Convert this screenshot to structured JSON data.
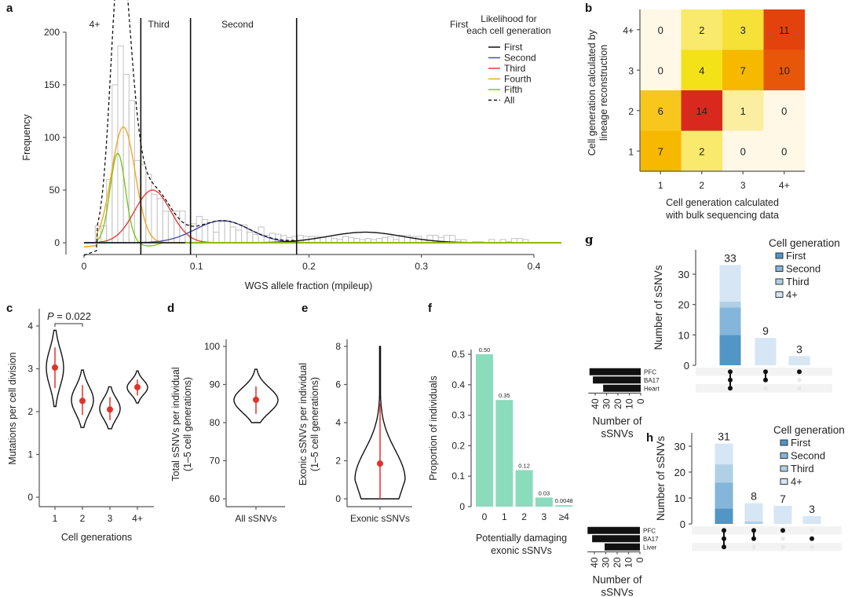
{
  "panel_labels": {
    "a": "a",
    "b": "b",
    "c": "c",
    "d": "d",
    "e": "e",
    "f": "f",
    "g": "g",
    "h": "h"
  },
  "chart_data": [
    {
      "id": "a",
      "type": "line",
      "title": "",
      "xlabel": "WGS allele fraction (mpileup)",
      "ylabel": "Frequency",
      "xlim": [
        0,
        0.42
      ],
      "ylim": [
        0,
        200
      ],
      "xticks": [
        "0",
        "0.1",
        "0.2",
        "0.3",
        "0.4"
      ],
      "xtick_values": [
        0,
        0.1,
        0.2,
        0.3,
        0.4
      ],
      "yticks": [
        "0",
        "50",
        "100",
        "150",
        "200"
      ],
      "ytick_values": [
        0,
        50,
        100,
        150,
        200
      ],
      "histogram": {
        "bin_width": 0.005,
        "bin_start": 0,
        "counts": [
          0,
          0,
          16,
          16,
          60,
          150,
          187,
          160,
          135,
          78,
          74,
          65,
          46,
          42,
          30,
          30,
          30,
          30,
          17,
          18,
          25,
          22,
          19,
          10,
          20,
          20,
          15,
          12,
          17,
          10,
          8,
          15,
          7,
          9,
          8,
          7,
          5,
          6,
          7,
          6,
          6,
          6,
          5,
          6,
          4,
          3,
          6,
          5,
          4,
          3,
          4,
          3,
          4,
          5,
          6,
          3,
          7,
          7,
          6,
          6,
          3,
          7,
          7,
          5,
          7,
          7,
          3,
          3,
          0,
          1,
          1,
          0,
          3,
          0,
          3,
          1,
          4,
          4,
          3,
          0
        ]
      },
      "region_boundaries": [
        0.0505,
        0.0947,
        0.189
      ],
      "region_labels": [
        "4+",
        "Third",
        "Second",
        "First"
      ],
      "legend_title": "Likelihood for each cell generation",
      "legend_position": "top-right",
      "series": [
        {
          "name": "First",
          "color": "#111111",
          "mean": 0.25,
          "sd": 0.033,
          "peak": 10
        },
        {
          "name": "Second",
          "color": "#4a4fb0",
          "mean": 0.123,
          "sd": 0.024,
          "peak": 21
        },
        {
          "name": "Third",
          "color": "#e0413a",
          "mean": 0.061,
          "sd": 0.016,
          "peak": 50
        },
        {
          "name": "Fourth",
          "color": "#f5a623",
          "mean": 0.035,
          "sd": 0.0105,
          "peak": 110
        },
        {
          "name": "Fifth",
          "color": "#7dc421",
          "mean": 0.03,
          "sd": 0.0068,
          "peak": 85
        },
        {
          "name": "All",
          "color": "#111111",
          "dashed": true
        }
      ]
    },
    {
      "id": "b",
      "type": "heatmap",
      "xlabel": "Cell generation calculated with bulk sequencing data",
      "xlabel_lines": [
        "Cell generation calculated",
        "with bulk sequencing data"
      ],
      "ylabel_lines": [
        "Cell generation calculated by",
        "lineage reconstruction"
      ],
      "x_categories": [
        "1",
        "2",
        "3",
        "4+"
      ],
      "y_categories": [
        "1",
        "2",
        "3",
        "4+"
      ],
      "values_by_row_top_to_bottom": [
        {
          "row": "4+",
          "values": [
            0,
            2,
            3,
            11
          ]
        },
        {
          "row": "3",
          "values": [
            0,
            4,
            7,
            10
          ]
        },
        {
          "row": "2",
          "values": [
            6,
            14,
            1,
            0
          ]
        },
        {
          "row": "1",
          "values": [
            7,
            2,
            0,
            0
          ]
        }
      ],
      "color_scale": [
        "#fff8e6",
        "#fbeea0",
        "#f8e66a",
        "#f5e11a",
        "#f7c31b",
        "#f7b800",
        "#e85d0c",
        "#e3420c",
        "#d9261c"
      ]
    },
    {
      "id": "c",
      "type": "violin",
      "xlabel": "Cell generations",
      "ylabel": "Mutations per cell division",
      "ylim": [
        0,
        4.3
      ],
      "yticks": [
        "0",
        "1",
        "2",
        "3",
        "4"
      ],
      "categories": [
        "1",
        "2",
        "3",
        "4+"
      ],
      "points": [
        {
          "category": "1",
          "median": 3.03,
          "min": 2.12,
          "max": 3.9,
          "iqr": [
            2.55,
            3.5
          ],
          "width": 0.8
        },
        {
          "category": "2",
          "median": 2.25,
          "min": 1.63,
          "max": 2.97,
          "iqr": [
            1.92,
            2.62
          ],
          "width": 0.9
        },
        {
          "category": "3",
          "median": 2.05,
          "min": 1.6,
          "max": 2.58,
          "iqr": [
            1.8,
            2.34
          ],
          "width": 0.8
        },
        {
          "category": "4+",
          "median": 2.57,
          "min": 2.2,
          "max": 2.95,
          "iqr": [
            2.38,
            2.75
          ],
          "width": 0.7
        }
      ],
      "annotation": {
        "text": "P = 0.022",
        "p_label": "P",
        "p_value": "= 0.022",
        "between": [
          "1",
          "2"
        ]
      }
    },
    {
      "id": "d",
      "type": "violin",
      "xlabel": "All sSNVs",
      "ylabel_lines": [
        "Total sSNVs per individual",
        "(1–5 cell generations)"
      ],
      "ylim": [
        58,
        102
      ],
      "yticks": [
        "60",
        "70",
        "80",
        "90",
        "100"
      ],
      "ytick_values": [
        60,
        70,
        80,
        90,
        100
      ],
      "points": [
        {
          "category": "All sSNVs",
          "median": 86,
          "min": 80,
          "max": 94,
          "iqr": [
            82.3,
            89.5
          ],
          "width": 1
        }
      ]
    },
    {
      "id": "e",
      "type": "violin",
      "xlabel": "Exonic sSNVs",
      "ylabel_lines": [
        "Exonic sSNVs per individual",
        "(1–5 cell generations)"
      ],
      "ylim": [
        -0.3,
        8.3
      ],
      "yticks": [
        "0",
        "2",
        "4",
        "6",
        "8"
      ],
      "ytick_values": [
        0,
        2,
        4,
        6,
        8
      ],
      "points": [
        {
          "category": "Exonic sSNVs",
          "median": 1.85,
          "min": 0,
          "max": 8,
          "iqr": [
            0,
            5
          ],
          "width": 1
        }
      ]
    },
    {
      "id": "f",
      "type": "bar",
      "xlabel_lines": [
        "Potentially damaging",
        "exonic sSNVs"
      ],
      "ylabel": "Proportion of individuals",
      "ylim": [
        0,
        0.52
      ],
      "yticks": [
        "0",
        "0.1",
        "0.2",
        "0.3",
        "0.4",
        "0.5"
      ],
      "ytick_values": [
        0,
        0.1,
        0.2,
        0.3,
        0.4,
        0.5
      ],
      "categories": [
        "0",
        "1",
        "2",
        "3",
        "≥4"
      ],
      "values": [
        0.5,
        0.35,
        0.12,
        0.03,
        0.0048
      ],
      "labels": [
        "0.50",
        "0.35",
        "0.12",
        "0.03",
        "0.0048"
      ],
      "color": "#8adcbd"
    },
    {
      "id": "g",
      "type": "bar",
      "subtype": "upset",
      "ylabel": "Number of sSNVs",
      "ylim": [
        0,
        37
      ],
      "yticks": [
        "0",
        "10",
        "20",
        "30"
      ],
      "ytick_values": [
        0,
        10,
        20,
        30
      ],
      "legend_title": "Cell generation",
      "legend": [
        {
          "name": "First",
          "color": "#5196c6"
        },
        {
          "name": "Second",
          "color": "#84b5da"
        },
        {
          "name": "Third",
          "color": "#b0d0e6"
        },
        {
          "name": "4+",
          "color": "#d6e6f4"
        }
      ],
      "intersections": [
        {
          "total": 33,
          "sets": [
            "PFC",
            "BA17",
            "Heart"
          ],
          "stack": [
            10,
            9,
            2,
            12
          ]
        },
        {
          "total": 9,
          "sets": [
            "PFC",
            "BA17"
          ],
          "stack": [
            0,
            0,
            0,
            9
          ]
        },
        {
          "total": 3,
          "sets": [
            "PFC"
          ],
          "stack": [
            0,
            0,
            0,
            3
          ]
        }
      ],
      "set_names": [
        "PFC",
        "BA17",
        "Heart"
      ],
      "set_sizes": [
        45,
        42,
        33
      ],
      "set_size_ticks": [
        "40",
        "30",
        "20",
        "10",
        "0"
      ],
      "set_size_label_lines": [
        "Number of",
        "sSNVs"
      ]
    },
    {
      "id": "h",
      "type": "bar",
      "subtype": "upset",
      "ylabel": "Number of sSNVs",
      "ylim": [
        0,
        35
      ],
      "yticks": [
        "0",
        "10",
        "20",
        "30"
      ],
      "ytick_values": [
        0,
        10,
        20,
        30
      ],
      "legend_title": "Cell generation",
      "legend": [
        {
          "name": "First",
          "color": "#5196c6"
        },
        {
          "name": "Second",
          "color": "#84b5da"
        },
        {
          "name": "Third",
          "color": "#b0d0e6"
        },
        {
          "name": "4+",
          "color": "#d6e6f4"
        }
      ],
      "intersections": [
        {
          "total": 31,
          "sets": [
            "PFC",
            "BA17",
            "Liver"
          ],
          "stack": [
            6,
            10,
            7,
            8
          ]
        },
        {
          "total": 8,
          "sets": [
            "PFC",
            "BA17"
          ],
          "stack": [
            0,
            0,
            1,
            7
          ]
        },
        {
          "total": 7,
          "sets": [
            "PFC"
          ],
          "stack": [
            0,
            0,
            0,
            7
          ]
        },
        {
          "total": 3,
          "sets": [
            "BA17"
          ],
          "stack": [
            0,
            0,
            0,
            3
          ]
        }
      ],
      "set_names": [
        "PFC",
        "BA17",
        "Liver"
      ],
      "set_sizes": [
        46,
        42,
        31
      ],
      "set_size_ticks": [
        "40",
        "30",
        "20",
        "10",
        "0"
      ],
      "set_size_label_lines": [
        "Number of",
        "sSNVs"
      ]
    }
  ]
}
